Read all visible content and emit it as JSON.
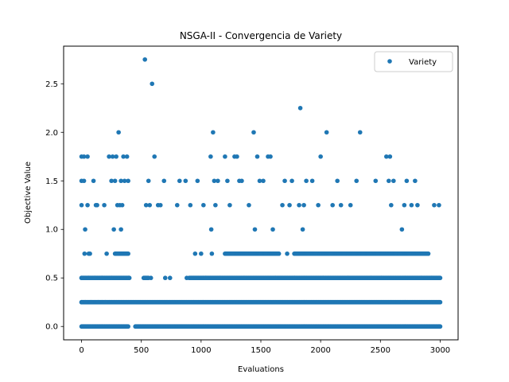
{
  "chart_data": {
    "type": "scatter",
    "title": "NSGA-II - Convergencia de Variety",
    "xlabel": "Evaluations",
    "ylabel": "Objective Value",
    "xlim": [
      -150,
      3150
    ],
    "ylim": [
      -0.1375,
      2.8875
    ],
    "xticks": [
      0,
      500,
      1000,
      1500,
      2000,
      2500,
      3000
    ],
    "xtick_labels": [
      "0",
      "500",
      "1000",
      "1500",
      "2000",
      "2500",
      "3000"
    ],
    "yticks": [
      0.0,
      0.5,
      1.0,
      1.5,
      2.0,
      2.5
    ],
    "ytick_labels": [
      "0.0",
      "0.5",
      "1.0",
      "1.5",
      "2.0",
      "2.5"
    ],
    "grid": false,
    "legend": {
      "position": "top-right",
      "entries": [
        "Variety"
      ]
    },
    "series": [
      {
        "name": "Variety",
        "color": "#1f77b4",
        "points": [
          [
            0,
            0.25
          ],
          [
            0,
            0.5
          ],
          [
            0,
            1.25
          ],
          [
            0,
            1.5
          ],
          [
            0,
            1.75
          ],
          [
            20,
            1.5
          ],
          [
            20,
            1.75
          ],
          [
            25,
            0.75
          ],
          [
            30,
            1.0
          ],
          [
            30,
            0.25
          ],
          [
            50,
            1.25
          ],
          [
            50,
            1.75
          ],
          [
            60,
            0.5
          ],
          [
            60,
            0.75
          ],
          [
            70,
            0.75
          ],
          [
            80,
            0.25
          ],
          [
            100,
            1.5
          ],
          [
            110,
            0.5
          ],
          [
            120,
            1.25
          ],
          [
            130,
            1.25
          ],
          [
            140,
            0.25
          ],
          [
            170,
            0.5
          ],
          [
            190,
            1.25
          ],
          [
            200,
            0.25
          ],
          [
            210,
            0.75
          ],
          [
            230,
            1.75
          ],
          [
            250,
            1.5
          ],
          [
            250,
            0.5
          ],
          [
            260,
            1.75
          ],
          [
            270,
            1.0
          ],
          [
            280,
            1.5
          ],
          [
            290,
            1.75
          ],
          [
            300,
            0.75
          ],
          [
            300,
            1.25
          ],
          [
            310,
            2.0
          ],
          [
            320,
            1.25
          ],
          [
            330,
            1.0
          ],
          [
            330,
            1.5
          ],
          [
            340,
            1.25
          ],
          [
            350,
            1.75
          ],
          [
            360,
            1.5
          ],
          [
            370,
            0.75
          ],
          [
            380,
            1.75
          ],
          [
            390,
            1.5
          ],
          [
            395,
            0.5
          ],
          [
            530,
            2.75
          ],
          [
            540,
            1.25
          ],
          [
            560,
            1.5
          ],
          [
            570,
            1.25
          ],
          [
            580,
            0.5
          ],
          [
            590,
            2.5
          ],
          [
            610,
            1.75
          ],
          [
            640,
            1.25
          ],
          [
            660,
            1.25
          ],
          [
            690,
            1.5
          ],
          [
            700,
            0.5
          ],
          [
            740,
            0.5
          ],
          [
            800,
            1.25
          ],
          [
            820,
            1.5
          ],
          [
            870,
            1.5
          ],
          [
            880,
            0.5
          ],
          [
            910,
            1.25
          ],
          [
            950,
            0.75
          ],
          [
            970,
            1.5
          ],
          [
            1000,
            0.75
          ],
          [
            1020,
            1.25
          ],
          [
            1040,
            0.5
          ],
          [
            1080,
            1.75
          ],
          [
            1085,
            1.0
          ],
          [
            1090,
            0.75
          ],
          [
            1100,
            2.0
          ],
          [
            1110,
            1.5
          ],
          [
            1120,
            1.25
          ],
          [
            1140,
            1.5
          ],
          [
            1160,
            0.5
          ],
          [
            1200,
            1.75
          ],
          [
            1220,
            1.5
          ],
          [
            1240,
            1.25
          ],
          [
            1260,
            0.75
          ],
          [
            1280,
            1.75
          ],
          [
            1300,
            1.75
          ],
          [
            1320,
            1.5
          ],
          [
            1340,
            1.5
          ],
          [
            1360,
            0.5
          ],
          [
            1380,
            0.75
          ],
          [
            1400,
            1.25
          ],
          [
            1420,
            0.75
          ],
          [
            1440,
            2.0
          ],
          [
            1450,
            1.0
          ],
          [
            1470,
            1.75
          ],
          [
            1490,
            1.5
          ],
          [
            1500,
            0.75
          ],
          [
            1520,
            1.5
          ],
          [
            1540,
            0.75
          ],
          [
            1560,
            1.75
          ],
          [
            1580,
            1.75
          ],
          [
            1600,
            1.0
          ],
          [
            1620,
            0.5
          ],
          [
            1650,
            0.75
          ],
          [
            1680,
            1.25
          ],
          [
            1700,
            1.5
          ],
          [
            1720,
            0.75
          ],
          [
            1740,
            1.25
          ],
          [
            1760,
            1.5
          ],
          [
            1780,
            0.5
          ],
          [
            1800,
            0.75
          ],
          [
            1820,
            1.25
          ],
          [
            1830,
            2.25
          ],
          [
            1850,
            1.0
          ],
          [
            1860,
            1.25
          ],
          [
            1880,
            1.5
          ],
          [
            1900,
            0.75
          ],
          [
            1930,
            1.5
          ],
          [
            1960,
            0.75
          ],
          [
            1980,
            1.25
          ],
          [
            2000,
            1.75
          ],
          [
            2020,
            0.5
          ],
          [
            2050,
            2.0
          ],
          [
            2080,
            0.75
          ],
          [
            2100,
            1.25
          ],
          [
            2140,
            1.5
          ],
          [
            2170,
            1.25
          ],
          [
            2200,
            0.75
          ],
          [
            2230,
            0.5
          ],
          [
            2250,
            1.25
          ],
          [
            2280,
            0.75
          ],
          [
            2300,
            1.5
          ],
          [
            2330,
            2.0
          ],
          [
            2360,
            0.75
          ],
          [
            2400,
            0.75
          ],
          [
            2420,
            0.5
          ],
          [
            2460,
            1.5
          ],
          [
            2480,
            0.75
          ],
          [
            2510,
            0.5
          ],
          [
            2550,
            1.75
          ],
          [
            2570,
            1.5
          ],
          [
            2580,
            1.75
          ],
          [
            2590,
            1.25
          ],
          [
            2610,
            1.5
          ],
          [
            2630,
            0.75
          ],
          [
            2660,
            0.75
          ],
          [
            2680,
            1.0
          ],
          [
            2700,
            1.25
          ],
          [
            2720,
            1.5
          ],
          [
            2740,
            0.75
          ],
          [
            2760,
            1.25
          ],
          [
            2790,
            1.5
          ],
          [
            2810,
            1.25
          ],
          [
            2840,
            0.5
          ],
          [
            2870,
            0.75
          ],
          [
            2900,
            0.75
          ],
          [
            2930,
            0.5
          ],
          [
            2950,
            1.25
          ],
          [
            2990,
            1.25
          ]
        ],
        "dense_levels": [
          {
            "y": 0.0,
            "x_ranges": [
              [
                0,
                390
              ],
              [
                450,
                3000
              ]
            ]
          },
          {
            "y": 0.25,
            "x_ranges": [
              [
                0,
                3000
              ]
            ]
          },
          {
            "y": 0.5,
            "x_ranges": [
              [
                0,
                400
              ],
              [
                520,
                560
              ],
              [
                900,
                3000
              ]
            ]
          },
          {
            "y": 0.75,
            "x_ranges": [
              [
                280,
                390
              ],
              [
                1200,
                1650
              ],
              [
                1780,
                2900
              ]
            ]
          }
        ]
      }
    ]
  }
}
